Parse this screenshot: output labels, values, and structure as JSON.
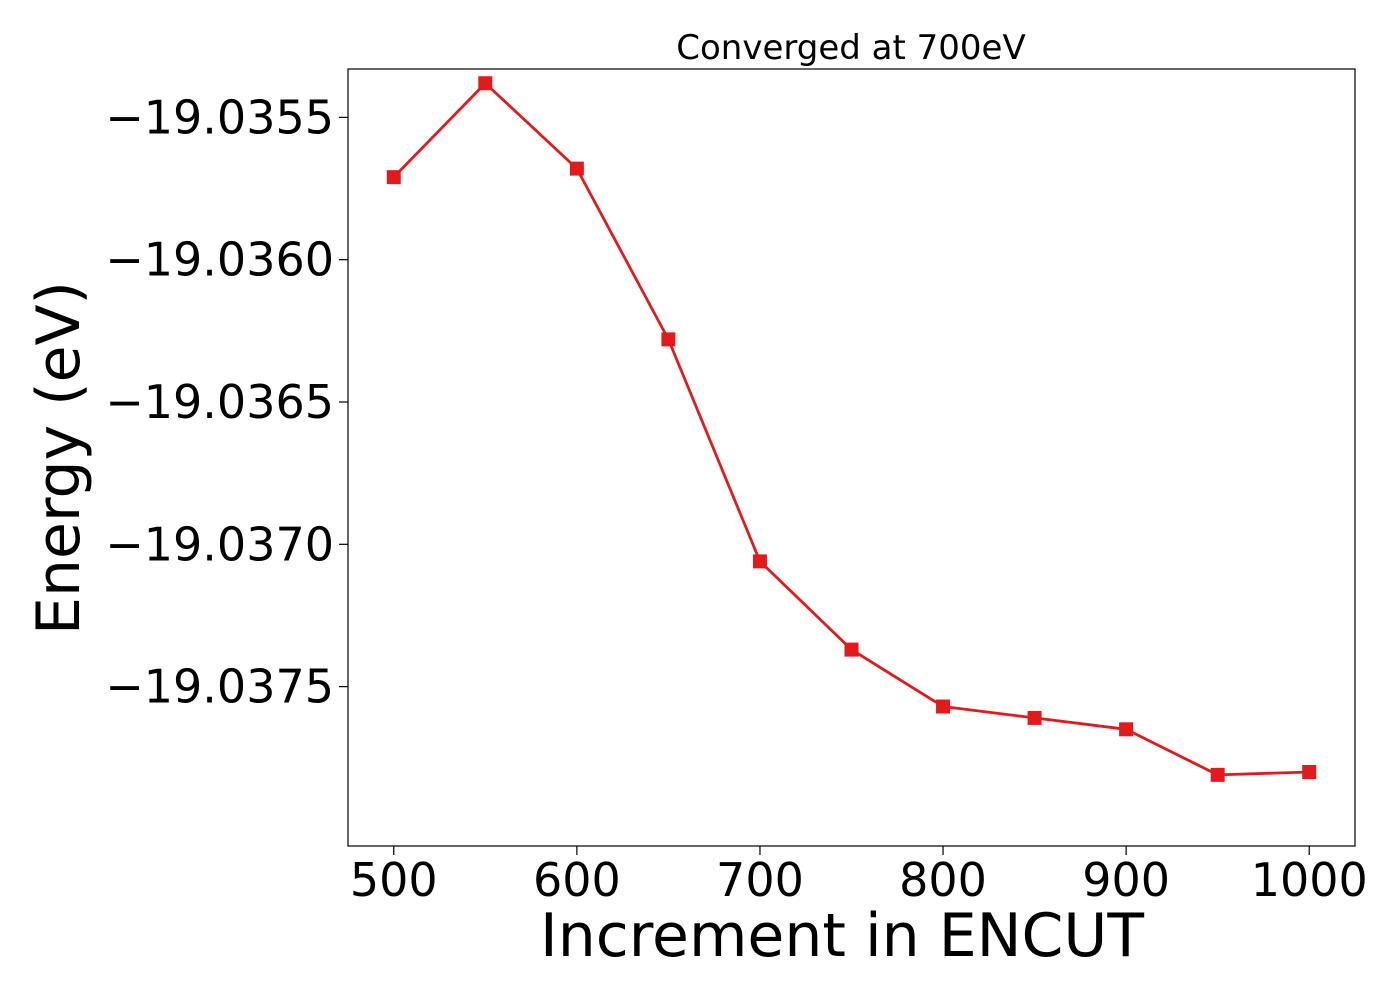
{
  "chart_data": {
    "type": "line",
    "title": "Converged at 700eV",
    "xlabel": "Increment in ENCUT",
    "ylabel": "Energy (eV)",
    "x_ticks": [
      500,
      600,
      700,
      800,
      900,
      1000
    ],
    "y_ticks": [
      -19.0355,
      -19.036,
      -19.0365,
      -19.037,
      -19.0375
    ],
    "y_tick_labels": [
      "−19.0355",
      "−19.0360",
      "−19.0365",
      "−19.0370",
      "−19.0375"
    ],
    "xlim": [
      475,
      1025
    ],
    "ylim": [
      -19.03806,
      -19.03533
    ],
    "grid": false,
    "series": [
      {
        "color": "#e31a1c",
        "marker": "square",
        "x": [
          500,
          550,
          600,
          650,
          700,
          750,
          800,
          850,
          900,
          950,
          1000
        ],
        "y": [
          -19.03571,
          -19.03538,
          -19.03568,
          -19.03628,
          -19.03706,
          -19.03737,
          -19.03757,
          -19.03761,
          -19.03765,
          -19.03781,
          -19.0378
        ]
      }
    ]
  }
}
